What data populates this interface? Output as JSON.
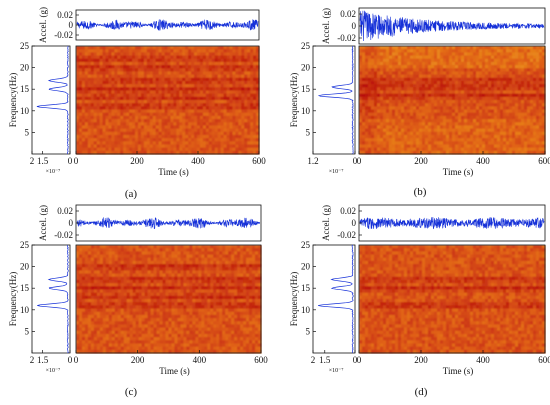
{
  "colors": {
    "signal": "#1530d8",
    "spec_low": "#f3b41c",
    "spec_mid": "#e06018",
    "spec_high": "#b80e0c",
    "axis": "#111111"
  },
  "chart_data": [
    {
      "type": "heatmap",
      "panel_label": "(a)",
      "accel": {
        "ylabel": "Accel. (g)",
        "yticks": [
          "0.02",
          "0",
          "-0.02"
        ],
        "ylim": [
          -0.03,
          0.03
        ],
        "amplitude": 0.012
      },
      "spectrogram": {
        "xlabel": "Time (s)",
        "ylabel": "Frequency(Hz)",
        "x_range": [
          0,
          600
        ],
        "y_range": [
          0,
          25
        ],
        "xticks": [
          "0",
          "200",
          "400",
          "600"
        ],
        "yticks": [
          "25",
          "20",
          "15",
          "10",
          "5"
        ],
        "bands_hz": [
          11,
          13,
          15,
          17,
          20,
          22
        ]
      },
      "psd": {
        "xticks": [
          "2",
          "1.5",
          "0"
        ],
        "exponent": "×10⁻⁷",
        "peaks_hz": [
          11,
          15,
          17
        ]
      }
    },
    {
      "type": "heatmap",
      "panel_label": "(b)",
      "accel": {
        "ylabel": "Accel. (g)",
        "yticks": [
          "0.02",
          "0",
          "-0.02"
        ],
        "ylim": [
          -0.03,
          0.03
        ],
        "amplitude": 0.022
      },
      "spectrogram": {
        "xlabel": "Time (s)",
        "ylabel": "Frequency(Hz)",
        "x_range": [
          0,
          600
        ],
        "y_range": [
          0,
          25
        ],
        "xticks": [
          "0",
          "200",
          "400",
          "600"
        ],
        "yticks": [
          "25",
          "20",
          "15",
          "10",
          "5"
        ],
        "bands_hz": [
          13.5,
          15.5,
          17
        ]
      },
      "psd": {
        "xticks": [
          "1.2",
          "0"
        ],
        "exponent": "×10⁻⁷",
        "peaks_hz": [
          13.5,
          15.5
        ]
      }
    },
    {
      "type": "heatmap",
      "panel_label": "(c)",
      "accel": {
        "ylabel": "Accel. (g)",
        "yticks": [
          "0.02",
          "0",
          "-0.02"
        ],
        "ylim": [
          -0.03,
          0.03
        ],
        "amplitude": 0.01
      },
      "spectrogram": {
        "xlabel": "Time (s)",
        "ylabel": "Frequency(Hz)",
        "x_range": [
          0,
          600
        ],
        "y_range": [
          0,
          25
        ],
        "xticks": [
          "0",
          "200",
          "400",
          "600"
        ],
        "yticks": [
          "25",
          "20",
          "15",
          "10",
          "5"
        ],
        "bands_hz": [
          11,
          13,
          15,
          17,
          20
        ]
      },
      "psd": {
        "xticks": [
          "2",
          "1.5",
          "0"
        ],
        "exponent": "×10⁻⁷",
        "peaks_hz": [
          11,
          15,
          17
        ]
      }
    },
    {
      "type": "heatmap",
      "panel_label": "(d)",
      "accel": {
        "ylabel": "Accel. (g)",
        "yticks": [
          "0.02",
          "0",
          "-0.02"
        ],
        "ylim": [
          -0.03,
          0.03
        ],
        "amplitude": 0.01
      },
      "spectrogram": {
        "xlabel": "Time (s)",
        "ylabel": "Frequency(Hz)",
        "x_range": [
          0,
          600
        ],
        "y_range": [
          0,
          25
        ],
        "xticks": [
          "0",
          "200",
          "400",
          "600"
        ],
        "yticks": [
          "25",
          "20",
          "15",
          "10",
          "5"
        ],
        "bands_hz": [
          11,
          15,
          17
        ]
      },
      "psd": {
        "xticks": [
          "2",
          "1.5",
          "0"
        ],
        "exponent": "×10⁻⁷",
        "peaks_hz": [
          11,
          15,
          17
        ]
      }
    }
  ]
}
